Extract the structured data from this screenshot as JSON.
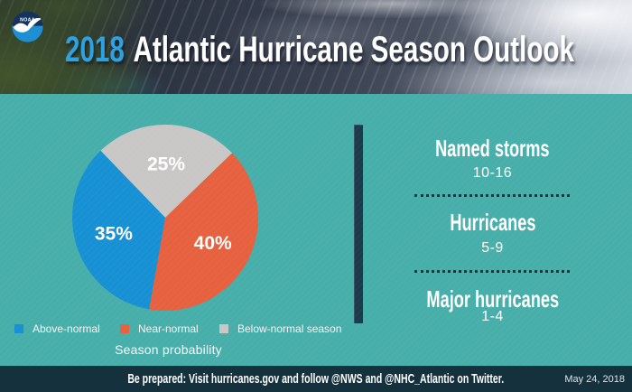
{
  "header": {
    "logo_text": "NOAA",
    "year": "2018",
    "title": "Atlantic Hurricane Season Outlook"
  },
  "chart_data": {
    "type": "pie",
    "title": "Season probability",
    "unit": "percent",
    "slices": [
      {
        "label": "Below-normal season",
        "value": 25,
        "display": "25%",
        "color": "#c9c7c5"
      },
      {
        "label": "Near-normal",
        "value": 40,
        "display": "40%",
        "color": "#e6613f"
      },
      {
        "label": "Above-normal",
        "value": 35,
        "display": "35%",
        "color": "#1791d4"
      }
    ],
    "start_angle_deg": -44,
    "label_radius_frac": 0.58,
    "legend_position": "bottom",
    "legend": [
      {
        "label": "Above-normal",
        "color": "#1791d4"
      },
      {
        "label": "Near-normal",
        "color": "#e6613f"
      },
      {
        "label": "Below-normal season",
        "color": "#c9c7c5"
      }
    ]
  },
  "outlook": {
    "stats": [
      {
        "label": "Named storms",
        "range": "10-16"
      },
      {
        "label": "Hurricanes",
        "range": "5-9"
      },
      {
        "label": "Major hurricanes",
        "range": "1-4"
      }
    ]
  },
  "footer": {
    "message": "Be prepared: Visit hurricanes.gov and follow @NWS and @NHC_Atlantic on Twitter.",
    "date": "May 24, 2018"
  },
  "colors": {
    "background": "#47aeaa",
    "divider": "#1c3a4b",
    "footer_bg": "#15313d",
    "year": "#2da2e0"
  }
}
